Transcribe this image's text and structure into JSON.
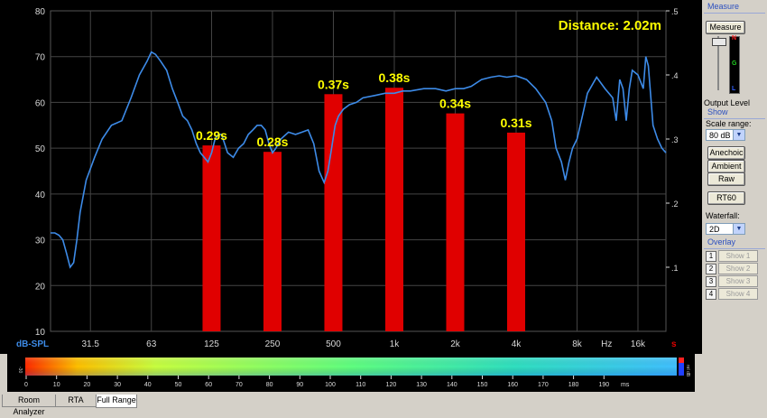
{
  "header": {
    "distance_text": "Distance: 2.02m"
  },
  "chart_data": {
    "type": "bar",
    "categories": [
      "125",
      "250",
      "500",
      "1k",
      "2k",
      "4k"
    ],
    "values": [
      0.29,
      0.28,
      0.37,
      0.38,
      0.34,
      0.31
    ],
    "value_labels": [
      "0.29s",
      "0.28s",
      "0.37s",
      "0.38s",
      "0.34s",
      "0.31s"
    ],
    "xlabel": "Hz",
    "ylabel": "dB-SPL",
    "y2label": "s",
    "x_scale": "log",
    "xlim": [
      20,
      22000
    ],
    "ylim": [
      10,
      80
    ],
    "y2lim": [
      0,
      0.5
    ],
    "x_ticks": [
      {
        "hz": 31.5,
        "label": "31.5"
      },
      {
        "hz": 63,
        "label": "63"
      },
      {
        "hz": 125,
        "label": "125"
      },
      {
        "hz": 250,
        "label": "250"
      },
      {
        "hz": 500,
        "label": "500"
      },
      {
        "hz": 1000,
        "label": "1k"
      },
      {
        "hz": 2000,
        "label": "2k"
      },
      {
        "hz": 4000,
        "label": "4k"
      },
      {
        "hz": 8000,
        "label": "8k"
      },
      {
        "hz": 11200,
        "label": "Hz"
      },
      {
        "hz": 16000,
        "label": "16k"
      }
    ],
    "y_ticks": [
      10,
      20,
      30,
      40,
      50,
      60,
      70,
      80
    ],
    "y2_ticks": [
      0.1,
      0.2,
      0.3,
      0.4,
      0.5
    ],
    "grid": true,
    "bar_color": "#e00000",
    "line_color": "#3d8be8",
    "background": "#000000",
    "grid_color": "#444444",
    "series": [
      {
        "type": "line",
        "x": [
          20,
          21,
          22,
          23,
          24,
          25,
          26,
          27,
          28,
          30,
          33,
          36,
          40,
          45,
          50,
          55,
          60,
          63,
          66,
          70,
          75,
          80,
          85,
          90,
          95,
          100,
          105,
          110,
          115,
          120,
          125,
          130,
          135,
          140,
          145,
          150,
          160,
          170,
          180,
          190,
          200,
          210,
          220,
          230,
          240,
          250,
          260,
          275,
          300,
          325,
          350,
          375,
          400,
          425,
          450,
          470,
          490,
          510,
          530,
          560,
          600,
          650,
          700,
          800,
          900,
          1000,
          1100,
          1200,
          1400,
          1600,
          1800,
          2000,
          2200,
          2400,
          2700,
          3000,
          3300,
          3600,
          4000,
          4500,
          5000,
          5600,
          6000,
          6300,
          6700,
          7000,
          7300,
          7600,
          8000,
          8500,
          9000,
          10000,
          11000,
          12000,
          12500,
          13000,
          13500,
          14000,
          14500,
          15000,
          16000,
          17000,
          17500,
          18000,
          19000,
          20000,
          21000,
          22000
        ],
        "y": [
          31.5,
          31.5,
          31,
          30,
          27,
          24,
          25,
          30,
          36,
          43,
          48,
          52,
          55,
          56,
          61,
          66,
          69,
          71,
          70.5,
          69,
          67,
          63,
          60,
          57,
          56,
          54,
          51,
          49,
          48,
          47,
          49,
          52,
          53,
          53,
          51,
          49,
          48,
          50,
          51,
          53,
          54,
          55,
          55,
          54,
          51,
          49,
          50,
          52,
          53.5,
          53,
          53.5,
          54,
          51,
          45,
          42.5,
          45,
          50,
          55,
          57,
          58.5,
          59.5,
          60,
          61,
          61.5,
          62,
          62,
          62.5,
          62.5,
          63,
          63,
          62.5,
          63,
          63,
          63.5,
          65,
          65.5,
          65.8,
          65.5,
          65.8,
          65,
          63,
          60,
          56,
          50,
          47,
          43,
          47,
          50,
          52,
          57,
          62,
          65.5,
          63,
          61,
          56,
          65,
          63,
          56,
          63,
          67,
          66,
          63,
          70,
          68,
          55,
          52,
          50,
          49
        ]
      }
    ]
  },
  "panel": {
    "measure_title": "Measure",
    "measure_button": "Measure",
    "level_n": "N",
    "level_g": "G",
    "level_l": "L",
    "output_level_label": "Output Level",
    "show_title": "Show",
    "scale_range_label": "Scale range:",
    "scale_range_value": "80 dB",
    "anechoic_button": "Anechoic",
    "ambient_button": "Ambient",
    "raw_button": "Raw",
    "rt60_button": "RT60",
    "waterfall_label": "Waterfall:",
    "waterfall_value": "2D",
    "overlay_title": "Overlay",
    "overlays": [
      {
        "num": "1",
        "label": "Show 1"
      },
      {
        "num": "2",
        "label": "Show 2"
      },
      {
        "num": "3",
        "label": "Show 3"
      },
      {
        "num": "4",
        "label": "Show 4"
      }
    ]
  },
  "waterfall": {
    "unit": "ms",
    "ticks": [
      "0",
      "10",
      "20",
      "30",
      "40",
      "50",
      "60",
      "70",
      "80",
      "90",
      "100",
      "110",
      "120",
      "130",
      "140",
      "150",
      "160",
      "170",
      "180",
      "190"
    ],
    "legend_top": "rel dB",
    "legend_bottom": "-30"
  },
  "tabs": [
    {
      "label": "Room Analyzer",
      "active": false
    },
    {
      "label": "RTA",
      "active": false
    },
    {
      "label": "Full Range",
      "active": true
    }
  ]
}
